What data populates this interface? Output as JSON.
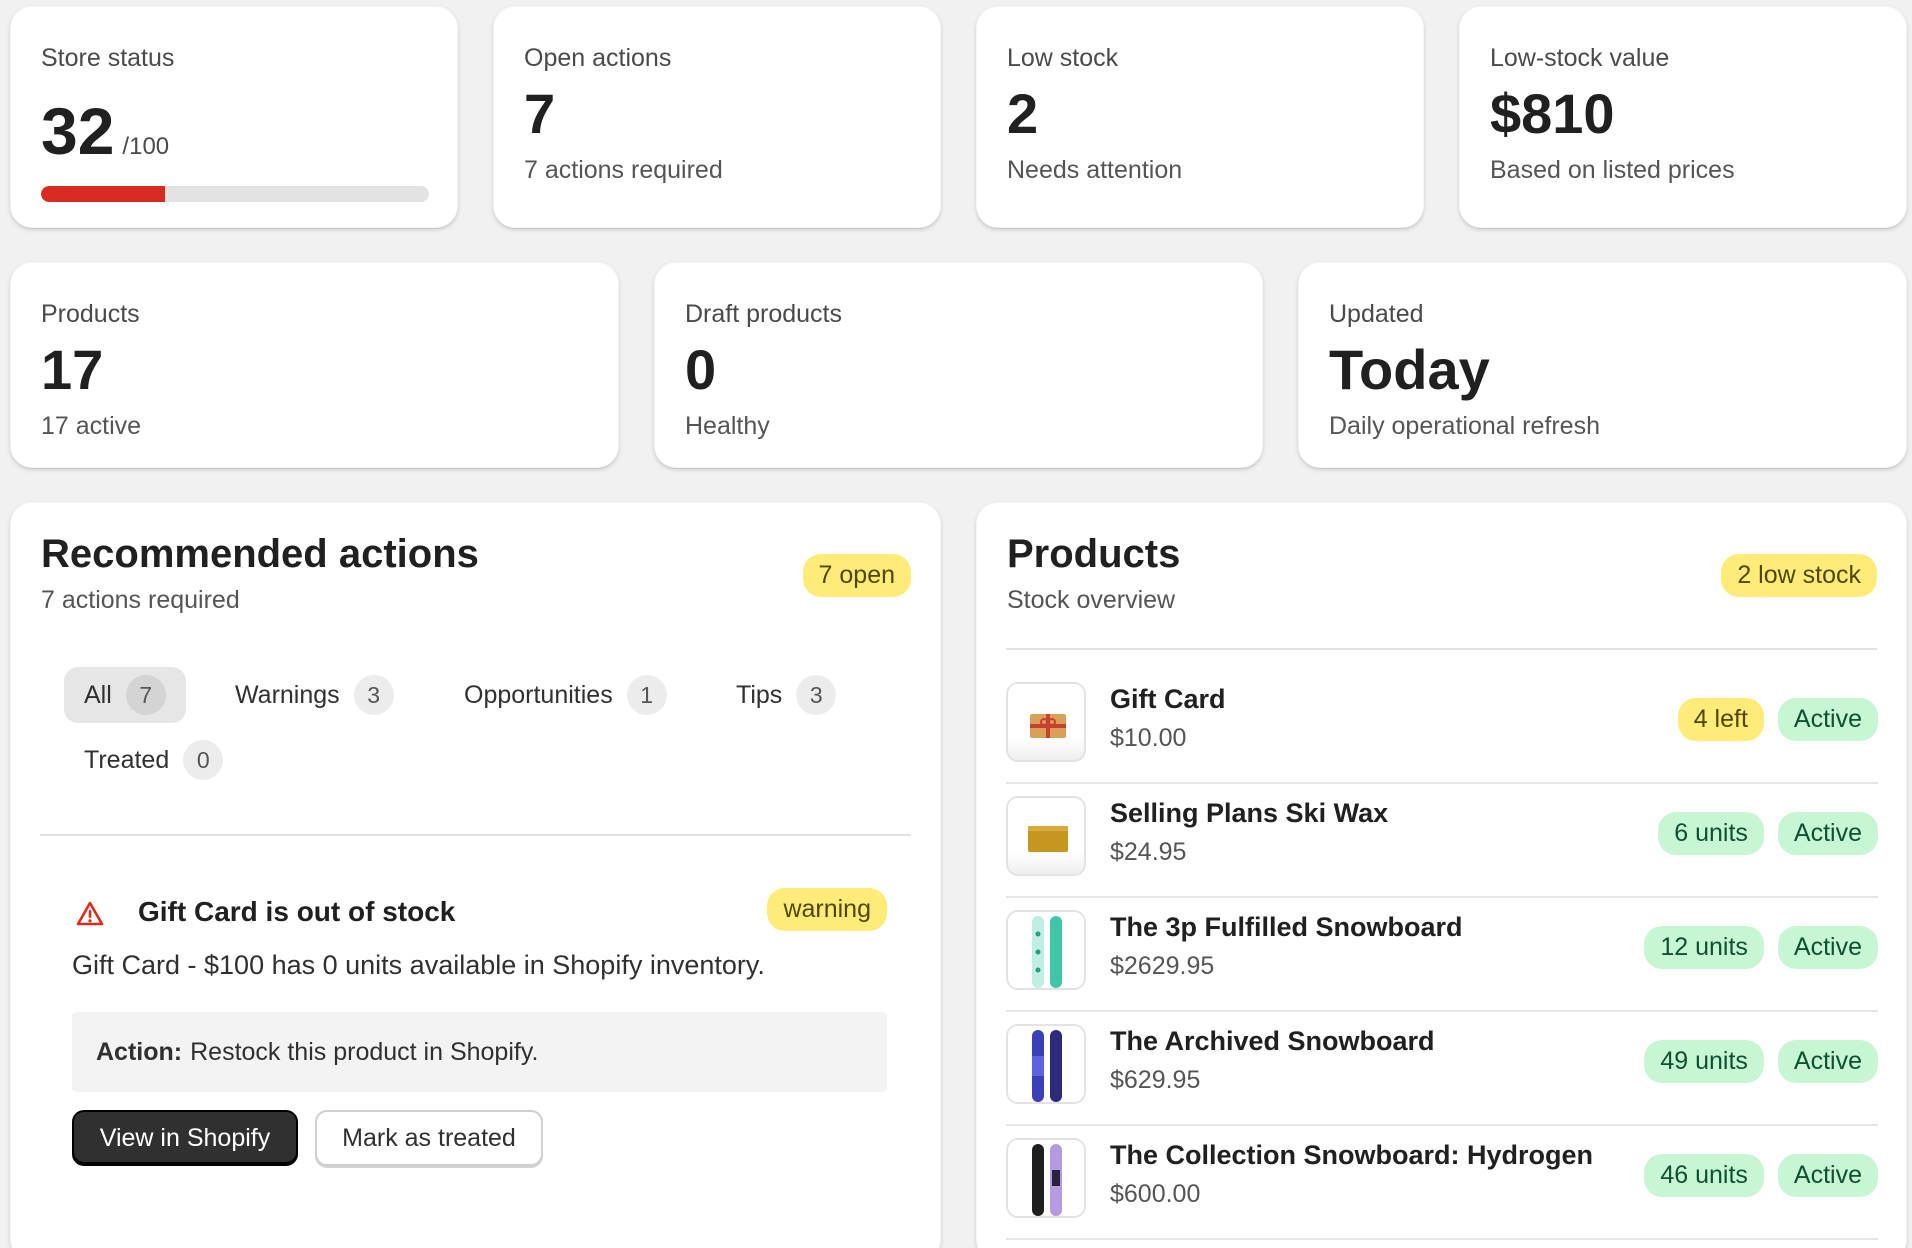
{
  "stats_top": [
    {
      "label": "Store status",
      "value": "32",
      "denom": "/100",
      "progress": 0.32,
      "progress_color": "#d92c20"
    },
    {
      "label": "Open actions",
      "value": "7",
      "sub": "7 actions required"
    },
    {
      "label": "Low stock",
      "value": "2",
      "sub": "Needs attention"
    },
    {
      "label": "Low-stock value",
      "value": "$810",
      "sub": "Based on listed prices"
    }
  ],
  "stats_mid": [
    {
      "label": "Products",
      "value": "17",
      "sub": "17 active"
    },
    {
      "label": "Draft products",
      "value": "0",
      "sub": "Healthy"
    },
    {
      "label": "Updated",
      "value": "Today",
      "sub": "Daily operational refresh"
    }
  ],
  "actions_panel": {
    "title": "Recommended actions",
    "subtitle": "7 actions required",
    "badge": "7 open",
    "tabs": [
      {
        "label": "All",
        "count": "7"
      },
      {
        "label": "Warnings",
        "count": "3"
      },
      {
        "label": "Opportunities",
        "count": "1"
      },
      {
        "label": "Tips",
        "count": "3"
      },
      {
        "label": "Treated",
        "count": "0"
      }
    ],
    "item": {
      "icon": "warning-triangle-icon",
      "title": "Gift Card is out of stock",
      "severity": "warning",
      "description": "Gift Card - $100 has 0 units available in Shopify inventory.",
      "action_label": "Action:",
      "action_text": "Restock this product in Shopify.",
      "primary_button": "View in Shopify",
      "secondary_button": "Mark as treated"
    }
  },
  "products_panel": {
    "title": "Products",
    "subtitle": "Stock overview",
    "badge": "2 low stock",
    "items": [
      {
        "name": "Gift Card",
        "price": "$10.00",
        "stock": "4 left",
        "stock_level": "low",
        "status": "Active",
        "thumb": "gift-card-icon"
      },
      {
        "name": "Selling Plans Ski Wax",
        "price": "$24.95",
        "stock": "6 units",
        "stock_level": "ok",
        "status": "Active",
        "thumb": "ski-wax-icon"
      },
      {
        "name": "The 3p Fulfilled Snowboard",
        "price": "$2629.95",
        "stock": "12 units",
        "stock_level": "ok",
        "status": "Active",
        "thumb": "snowboard-teal-icon"
      },
      {
        "name": "The Archived Snowboard",
        "price": "$629.95",
        "stock": "49 units",
        "stock_level": "ok",
        "status": "Active",
        "thumb": "snowboard-blue-icon"
      },
      {
        "name": "The Collection Snowboard: Hydrogen",
        "price": "$600.00",
        "stock": "46 units",
        "stock_level": "ok",
        "status": "Active",
        "thumb": "snowboard-hydrogen-icon"
      }
    ]
  },
  "colors": {
    "warning_pill": "#ffeb78",
    "success_pill": "#c8f5d4",
    "critical": "#d92c20"
  }
}
